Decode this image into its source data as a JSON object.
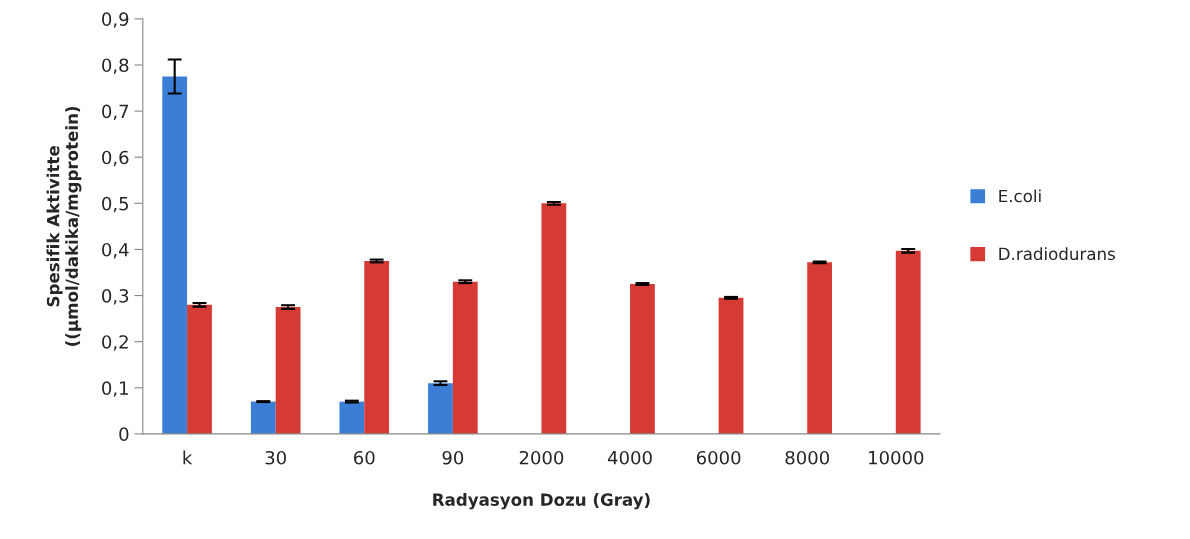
{
  "chart_data": {
    "type": "bar",
    "xlabel": "Radyasyon Dozu (Gray)",
    "ylabel": "Spesifik Aktivitte\n((µmol/dakika/mgprotein)",
    "categories": [
      "k",
      "30",
      "60",
      "90",
      "2000",
      "4000",
      "6000",
      "8000",
      "10000"
    ],
    "series": [
      {
        "name": "E.coli",
        "color": "#3a7fd5",
        "values": [
          0.775,
          0.07,
          0.07,
          0.11,
          null,
          null,
          null,
          null,
          null
        ],
        "errors": [
          0.037,
          0.001,
          0.002,
          0.004,
          null,
          null,
          null,
          null,
          null
        ]
      },
      {
        "name": "D.radiodurans",
        "color": "#d63a35",
        "values": [
          0.28,
          0.275,
          0.375,
          0.33,
          0.5,
          0.325,
          0.295,
          0.372,
          0.397
        ],
        "errors": [
          0.004,
          0.004,
          0.003,
          0.003,
          0.003,
          0.002,
          0.002,
          0.002,
          0.004
        ]
      }
    ],
    "ylim": [
      0,
      0.9
    ],
    "yticks": [
      0,
      {
        "value": 0.1,
        "label": "0,1"
      },
      {
        "value": 0.2,
        "label": "0,2"
      },
      {
        "value": 0.3,
        "label": "0,3"
      },
      {
        "value": 0.4,
        "label": "0,4"
      },
      {
        "value": 0.5,
        "label": "0,5"
      },
      {
        "value": 0.6,
        "label": "0,6"
      },
      {
        "value": 0.7,
        "label": "0,7"
      },
      {
        "value": 0.8,
        "label": "0,8"
      },
      {
        "value": 0.9,
        "label": "0,9"
      }
    ],
    "grid": false,
    "legend": "right"
  }
}
